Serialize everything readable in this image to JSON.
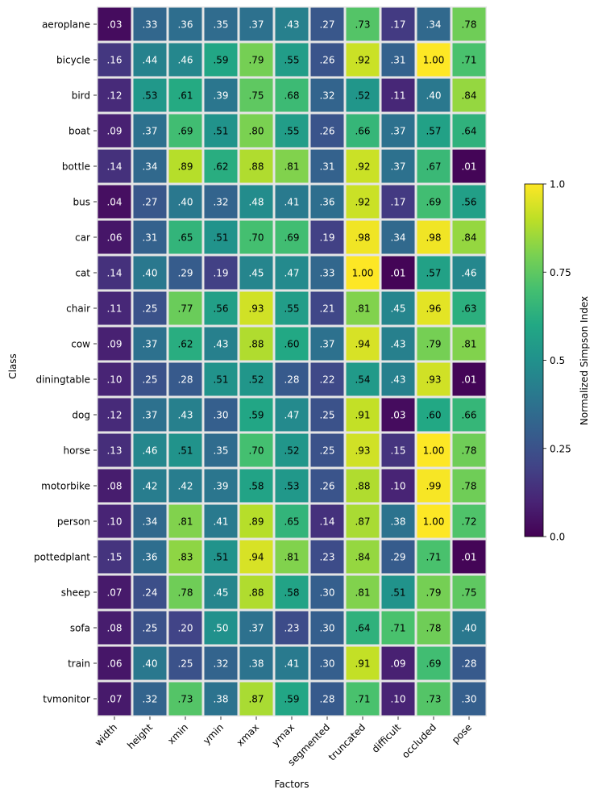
{
  "chart_data": {
    "type": "heatmap",
    "title": "",
    "xlabel": "Factors",
    "ylabel": "Class",
    "colorbar_label": "Normalized Simpson Index",
    "colormap": "viridis",
    "value_range": [
      0.0,
      1.0
    ],
    "colorbar_ticks": [
      "0.0",
      "0.25",
      "0.5",
      "0.75",
      "1.0"
    ],
    "columns": [
      "width",
      "height",
      "xmin",
      "ymin",
      "xmax",
      "ymax",
      "segmented",
      "truncated",
      "difficult",
      "occluded",
      "pose"
    ],
    "rows": [
      "aeroplane",
      "bicycle",
      "bird",
      "boat",
      "bottle",
      "bus",
      "car",
      "cat",
      "chair",
      "cow",
      "diningtable",
      "dog",
      "horse",
      "motorbike",
      "person",
      "pottedplant",
      "sheep",
      "sofa",
      "train",
      "tvmonitor"
    ],
    "values": [
      [
        0.03,
        0.33,
        0.36,
        0.35,
        0.37,
        0.43,
        0.27,
        0.73,
        0.17,
        0.34,
        0.78
      ],
      [
        0.16,
        0.44,
        0.46,
        0.59,
        0.79,
        0.55,
        0.26,
        0.92,
        0.31,
        1.0,
        0.71
      ],
      [
        0.12,
        0.53,
        0.61,
        0.39,
        0.75,
        0.68,
        0.32,
        0.52,
        0.11,
        0.4,
        0.84
      ],
      [
        0.09,
        0.37,
        0.69,
        0.51,
        0.8,
        0.55,
        0.26,
        0.66,
        0.37,
        0.57,
        0.64
      ],
      [
        0.14,
        0.34,
        0.89,
        0.62,
        0.88,
        0.81,
        0.31,
        0.92,
        0.37,
        0.67,
        0.01
      ],
      [
        0.04,
        0.27,
        0.4,
        0.32,
        0.48,
        0.41,
        0.36,
        0.92,
        0.17,
        0.69,
        0.56
      ],
      [
        0.06,
        0.31,
        0.65,
        0.51,
        0.7,
        0.69,
        0.19,
        0.98,
        0.34,
        0.98,
        0.84
      ],
      [
        0.14,
        0.4,
        0.29,
        0.19,
        0.45,
        0.47,
        0.33,
        1.0,
        0.01,
        0.57,
        0.46
      ],
      [
        0.11,
        0.25,
        0.77,
        0.56,
        0.93,
        0.55,
        0.21,
        0.81,
        0.45,
        0.96,
        0.63
      ],
      [
        0.09,
        0.37,
        0.62,
        0.43,
        0.88,
        0.6,
        0.37,
        0.94,
        0.43,
        0.79,
        0.81
      ],
      [
        0.1,
        0.25,
        0.28,
        0.51,
        0.52,
        0.28,
        0.22,
        0.54,
        0.43,
        0.93,
        0.01
      ],
      [
        0.12,
        0.37,
        0.43,
        0.3,
        0.59,
        0.47,
        0.25,
        0.91,
        0.03,
        0.6,
        0.66
      ],
      [
        0.13,
        0.46,
        0.51,
        0.35,
        0.7,
        0.52,
        0.25,
        0.93,
        0.15,
        1.0,
        0.78
      ],
      [
        0.08,
        0.42,
        0.42,
        0.39,
        0.58,
        0.53,
        0.26,
        0.88,
        0.1,
        0.99,
        0.78
      ],
      [
        0.1,
        0.34,
        0.81,
        0.41,
        0.89,
        0.65,
        0.14,
        0.87,
        0.38,
        1.0,
        0.72
      ],
      [
        0.15,
        0.36,
        0.83,
        0.51,
        0.94,
        0.81,
        0.23,
        0.84,
        0.29,
        0.71,
        0.01
      ],
      [
        0.07,
        0.24,
        0.78,
        0.45,
        0.88,
        0.58,
        0.3,
        0.81,
        0.51,
        0.79,
        0.75
      ],
      [
        0.08,
        0.25,
        0.2,
        0.5,
        0.37,
        0.23,
        0.3,
        0.64,
        0.71,
        0.78,
        0.4
      ],
      [
        0.06,
        0.4,
        0.25,
        0.32,
        0.38,
        0.41,
        0.3,
        0.91,
        0.09,
        0.69,
        0.28
      ],
      [
        0.07,
        0.32,
        0.73,
        0.38,
        0.87,
        0.59,
        0.28,
        0.71,
        0.1,
        0.73,
        0.3
      ]
    ],
    "cell_labels": [
      [
        ".03",
        ".33",
        ".36",
        ".35",
        ".37",
        ".43",
        ".27",
        ".73",
        ".17",
        ".34",
        ".78"
      ],
      [
        ".16",
        ".44",
        ".46",
        ".59",
        ".79",
        ".55",
        ".26",
        ".92",
        ".31",
        "1.00",
        ".71"
      ],
      [
        ".12",
        ".53",
        ".61",
        ".39",
        ".75",
        ".68",
        ".32",
        ".52",
        ".11",
        ".40",
        ".84"
      ],
      [
        ".09",
        ".37",
        ".69",
        ".51",
        ".80",
        ".55",
        ".26",
        ".66",
        ".37",
        ".57",
        ".64"
      ],
      [
        ".14",
        ".34",
        ".89",
        ".62",
        ".88",
        ".81",
        ".31",
        ".92",
        ".37",
        ".67",
        ".01"
      ],
      [
        ".04",
        ".27",
        ".40",
        ".32",
        ".48",
        ".41",
        ".36",
        ".92",
        ".17",
        ".69",
        ".56"
      ],
      [
        ".06",
        ".31",
        ".65",
        ".51",
        ".70",
        ".69",
        ".19",
        ".98",
        ".34",
        ".98",
        ".84"
      ],
      [
        ".14",
        ".40",
        ".29",
        ".19",
        ".45",
        ".47",
        ".33",
        "1.00",
        ".01",
        ".57",
        ".46"
      ],
      [
        ".11",
        ".25",
        ".77",
        ".56",
        ".93",
        ".55",
        ".21",
        ".81",
        ".45",
        ".96",
        ".63"
      ],
      [
        ".09",
        ".37",
        ".62",
        ".43",
        ".88",
        ".60",
        ".37",
        ".94",
        ".43",
        ".79",
        ".81"
      ],
      [
        ".10",
        ".25",
        ".28",
        ".51",
        ".52",
        ".28",
        ".22",
        ".54",
        ".43",
        ".93",
        ".01"
      ],
      [
        ".12",
        ".37",
        ".43",
        ".30",
        ".59",
        ".47",
        ".25",
        ".91",
        ".03",
        ".60",
        ".66"
      ],
      [
        ".13",
        ".46",
        ".51",
        ".35",
        ".70",
        ".52",
        ".25",
        ".93",
        ".15",
        "1.00",
        ".78"
      ],
      [
        ".08",
        ".42",
        ".42",
        ".39",
        ".58",
        ".53",
        ".26",
        ".88",
        ".10",
        ".99",
        ".78"
      ],
      [
        ".10",
        ".34",
        ".81",
        ".41",
        ".89",
        ".65",
        ".14",
        ".87",
        ".38",
        "1.00",
        ".72"
      ],
      [
        ".15",
        ".36",
        ".83",
        ".51",
        ".94",
        ".81",
        ".23",
        ".84",
        ".29",
        ".71",
        ".01"
      ],
      [
        ".07",
        ".24",
        ".78",
        ".45",
        ".88",
        ".58",
        ".30",
        ".81",
        ".51",
        ".79",
        ".75"
      ],
      [
        ".08",
        ".25",
        ".20",
        ".50",
        ".37",
        ".23",
        ".30",
        ".64",
        ".71",
        ".78",
        ".40"
      ],
      [
        ".06",
        ".40",
        ".25",
        ".32",
        ".38",
        ".41",
        ".30",
        ".91",
        ".09",
        ".69",
        ".28"
      ],
      [
        ".07",
        ".32",
        ".73",
        ".38",
        ".87",
        ".59",
        ".28",
        ".71",
        ".10",
        ".73",
        ".30"
      ]
    ],
    "grid_line_color": "#e5e5e5",
    "legend_position": "right"
  }
}
